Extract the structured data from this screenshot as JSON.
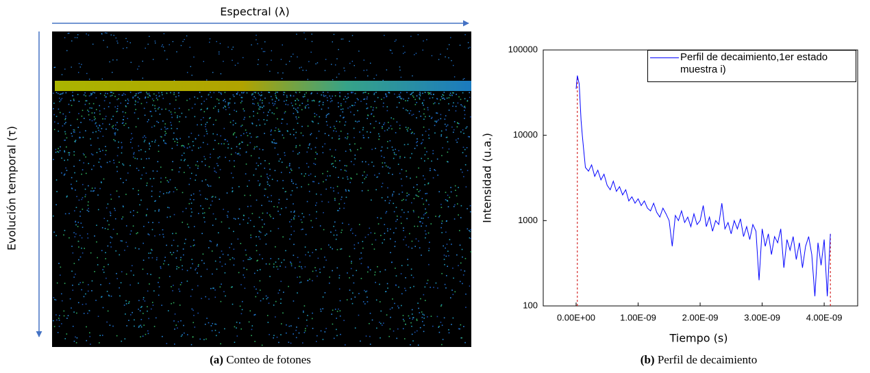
{
  "panel_a": {
    "x_axis_label": "Espectral (λ)",
    "y_axis_label": "Evolución temporal (τ)",
    "caption_tag": "(a)",
    "caption": "Conteo de fotones"
  },
  "chart_data": {
    "type": "line",
    "xlabel": "Tiempo (s)",
    "ylabel": "Intensidad (u.a.)",
    "log_y": true,
    "xlim": [
      -5.3e-10,
      4.54e-09
    ],
    "xticks": [
      {
        "value": 0,
        "label": "0.00E+00"
      },
      {
        "value": 1e-09,
        "label": "1.00E-09"
      },
      {
        "value": 2e-09,
        "label": "2.00E-09"
      },
      {
        "value": 3e-09,
        "label": "3.00E-09"
      },
      {
        "value": 4e-09,
        "label": "4.00E-09"
      }
    ],
    "ylim": [
      100,
      100000
    ],
    "yticks": [
      100,
      1000,
      10000,
      100000
    ],
    "x": [
      0,
      2e-11,
      5e-11,
      8e-11,
      1e-10,
      1.2e-10,
      1.5e-10,
      2e-10,
      2.5e-10,
      3e-10,
      3.5e-10,
      4e-10,
      4.5e-10,
      5e-10,
      5.5e-10,
      6e-10,
      6.5e-10,
      7e-10,
      7.5e-10,
      8e-10,
      8.5e-10,
      9e-10,
      9.5e-10,
      1e-09,
      1.05e-09,
      1.1e-09,
      1.15e-09,
      1.2e-09,
      1.25e-09,
      1.3e-09,
      1.35e-09,
      1.4e-09,
      1.45e-09,
      1.5e-09,
      1.55e-09,
      1.6e-09,
      1.65e-09,
      1.7e-09,
      1.75e-09,
      1.8e-09,
      1.85e-09,
      1.9e-09,
      1.95e-09,
      2e-09,
      2.05e-09,
      2.1e-09,
      2.15e-09,
      2.2e-09,
      2.25e-09,
      2.3e-09,
      2.35e-09,
      2.4e-09,
      2.45e-09,
      2.5e-09,
      2.55e-09,
      2.6e-09,
      2.65e-09,
      2.7e-09,
      2.75e-09,
      2.8e-09,
      2.85e-09,
      2.9e-09,
      2.95e-09,
      3e-09,
      3.05e-09,
      3.1e-09,
      3.15e-09,
      3.2e-09,
      3.25e-09,
      3.3e-09,
      3.35e-09,
      3.4e-09,
      3.45e-09,
      3.5e-09,
      3.55e-09,
      3.6e-09,
      3.65e-09,
      3.7e-09,
      3.75e-09,
      3.8e-09,
      3.85e-09,
      3.9e-09,
      3.95e-09,
      4e-09,
      4.05e-09,
      4.1e-09
    ],
    "series": [
      {
        "name": "Perfil de decaimiento,1er estado muestra i)",
        "color": "#0000ff",
        "values": [
          35000,
          50000,
          40000,
          15000,
          10000,
          7000,
          4200,
          3800,
          4500,
          3300,
          3900,
          3000,
          3500,
          2600,
          2300,
          2900,
          2200,
          2500,
          2000,
          2300,
          1700,
          1900,
          1600,
          1800,
          1500,
          1700,
          1400,
          1300,
          1600,
          1250,
          1100,
          1400,
          1200,
          1000,
          500,
          1150,
          1000,
          1300,
          950,
          1100,
          850,
          1200,
          900,
          1000,
          1500,
          850,
          1100,
          750,
          1000,
          900,
          1600,
          800,
          950,
          700,
          1000,
          800,
          1050,
          650,
          850,
          600,
          900,
          750,
          200,
          800,
          500,
          700,
          400,
          650,
          550,
          800,
          280,
          600,
          450,
          650,
          350,
          550,
          280,
          500,
          650,
          400,
          130,
          550,
          300,
          600,
          130,
          700
        ]
      }
    ],
    "reference_lines": [
      {
        "value": 2e-11,
        "color": "#cc0000"
      },
      {
        "value": 4.1e-09,
        "color": "#cc0000"
      }
    ],
    "caption_tag": "(b)",
    "caption": "Perfil de decaimiento"
  }
}
